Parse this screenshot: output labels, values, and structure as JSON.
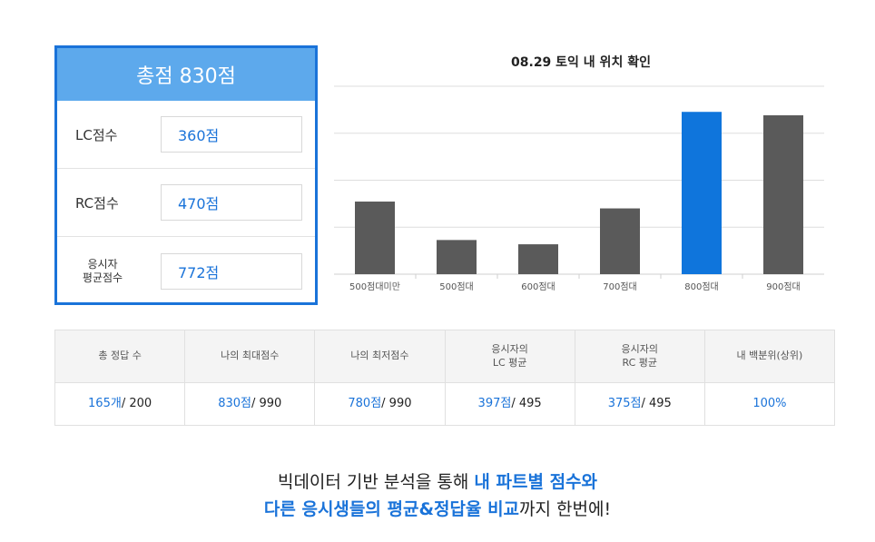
{
  "score_panel": {
    "title": "총점 830점",
    "rows": [
      {
        "label": "LC점수",
        "value": "360점"
      },
      {
        "label": "RC점수",
        "value": "470점"
      },
      {
        "label": "응시자\n평균점수",
        "value": "772점"
      }
    ]
  },
  "chart_data": {
    "type": "bar",
    "title": "08.29 토익 내 위치 확인",
    "categories": [
      "500점대미만",
      "500점대",
      "600점대",
      "700점대",
      "800점대",
      "900점대"
    ],
    "values": [
      85,
      40,
      35,
      77,
      190,
      186
    ],
    "highlight_category": "800점대",
    "colors": {
      "default": "#5a5a5a",
      "highlight": "#0f75dc"
    },
    "ylim": [
      0,
      220
    ],
    "grid": true
  },
  "stats": {
    "headers": [
      "총 정답 수",
      "나의 최대점수",
      "나의 최저점수",
      "응시자의\nLC 평균",
      "응시자의\nRC 평균",
      "내 백분위(상위)"
    ],
    "cells": [
      {
        "main": "165개",
        "rest": "/ 200"
      },
      {
        "main": "830점",
        "rest": "/ 990"
      },
      {
        "main": "780점",
        "rest": "/ 990"
      },
      {
        "main": "397점",
        "rest": "/ 495"
      },
      {
        "main": "375점",
        "rest": "/ 495"
      },
      {
        "main": "100%",
        "rest": ""
      }
    ]
  },
  "tagline": {
    "line1_prefix": "빅데이터 기반 분석을 통해 ",
    "line1_highlight": "내 파트별 점수와",
    "line2_highlight": "다른 응시생들의 평균&정답율 비교",
    "line2_suffix": "까지 한번에!"
  }
}
